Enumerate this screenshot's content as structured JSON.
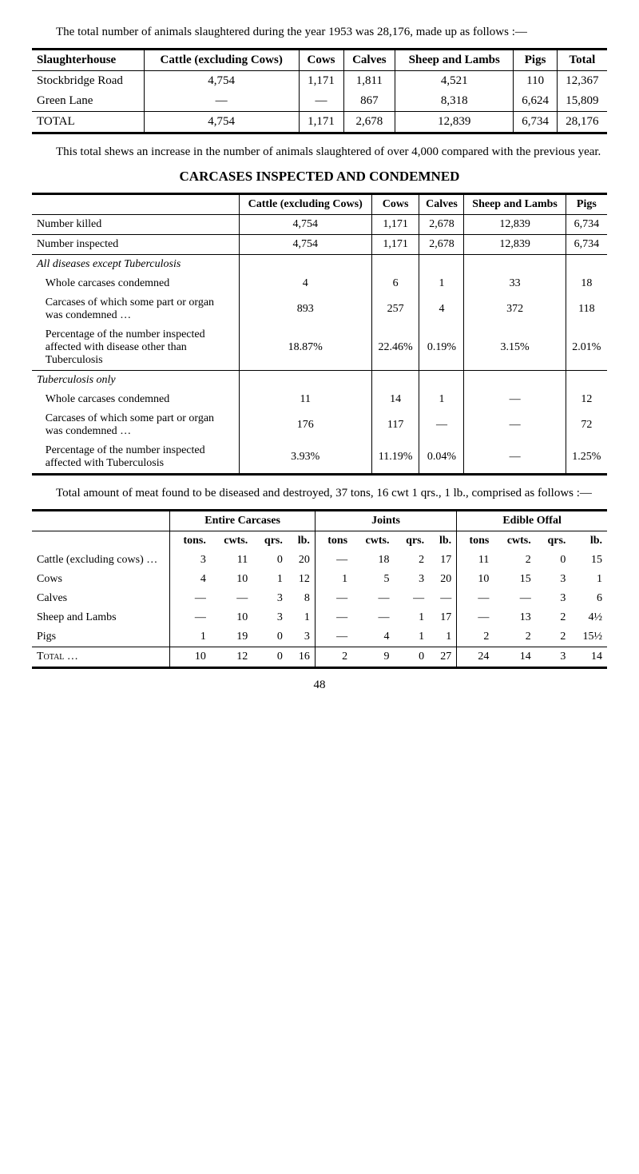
{
  "intro": {
    "line1": "The total number of animals slaughtered during the year 1953 was 28,176, made up as follows :—"
  },
  "table1": {
    "headers": [
      "Slaughterhouse",
      "Cattle (excluding Cows)",
      "Cows",
      "Calves",
      "Sheep and Lambs",
      "Pigs",
      "Total"
    ],
    "rows": [
      [
        "Stockbridge Road",
        "4,754",
        "1,171",
        "1,811",
        "4,521",
        "110",
        "12,367"
      ],
      [
        "Green Lane",
        "—",
        "—",
        "867",
        "8,318",
        "6,624",
        "15,809"
      ],
      [
        "TOTAL",
        "4,754",
        "1,171",
        "2,678",
        "12,839",
        "6,734",
        "28,176"
      ]
    ]
  },
  "para2": "This total shews an increase in the number of animals slaughtered of over 4,000 compared with the previous year.",
  "heading": "CARCASES INSPECTED AND CONDEMNED",
  "table2": {
    "headers": [
      "",
      "Cattle (excluding Cows)",
      "Cows",
      "Calves",
      "Sheep and Lambs",
      "Pigs"
    ],
    "rows": [
      {
        "label": "Number killed",
        "vals": [
          "4,754",
          "1,171",
          "2,678",
          "12,839",
          "6,734"
        ],
        "italic": false,
        "ruleBelow": true
      },
      {
        "label": "Number inspected",
        "vals": [
          "4,754",
          "1,171",
          "2,678",
          "12,839",
          "6,734"
        ],
        "italic": false,
        "ruleBelow": true
      },
      {
        "label": "All diseases except Tuberculosis",
        "vals": [
          "",
          "",
          "",
          "",
          ""
        ],
        "italic": true,
        "ruleBelow": false,
        "section": true
      },
      {
        "label": "Whole carcases condemned",
        "vals": [
          "4",
          "6",
          "1",
          "33",
          "18"
        ],
        "italic": false,
        "ruleBelow": false,
        "sub": true
      },
      {
        "label": "Carcases of which some part or organ was condemned …",
        "vals": [
          "893",
          "257",
          "4",
          "372",
          "118"
        ],
        "italic": false,
        "ruleBelow": false,
        "sub": true
      },
      {
        "label": "Percentage of the number inspected affected with disease other than Tuberculosis",
        "vals": [
          "18.87%",
          "22.46%",
          "0.19%",
          "3.15%",
          "2.01%"
        ],
        "italic": false,
        "ruleBelow": true,
        "sub": true
      },
      {
        "label": "Tuberculosis only",
        "vals": [
          "",
          "",
          "",
          "",
          ""
        ],
        "italic": true,
        "ruleBelow": false,
        "section": true
      },
      {
        "label": "Whole carcases condemned",
        "vals": [
          "11",
          "14",
          "1",
          "—",
          "12"
        ],
        "italic": false,
        "ruleBelow": false,
        "sub": true
      },
      {
        "label": "Carcases of which some part or organ was condemned …",
        "vals": [
          "176",
          "117",
          "—",
          "—",
          "72"
        ],
        "italic": false,
        "ruleBelow": false,
        "sub": true
      },
      {
        "label": "Percentage of the number inspected affected with Tuberculosis",
        "vals": [
          "3.93%",
          "11.19%",
          "0.04%",
          "—",
          "1.25%"
        ],
        "italic": false,
        "ruleBelow": false,
        "sub": true
      }
    ]
  },
  "para3": "Total amount of meat found to be diseased and destroyed, 37 tons, 16 cwt 1 qrs., 1 lb., comprised as follows :—",
  "table3": {
    "groupHeaders": [
      "",
      "Entire Carcases",
      "Joints",
      "Edible Offal"
    ],
    "subHeaders": [
      "",
      "tons.",
      "cwts.",
      "qrs.",
      "lb.",
      "tons",
      "cwts.",
      "qrs.",
      "lb.",
      "tons",
      "cwts.",
      "qrs.",
      "lb."
    ],
    "rows": [
      [
        "Cattle (excluding cows) …",
        "3",
        "11",
        "0",
        "20",
        "—",
        "18",
        "2",
        "17",
        "11",
        "2",
        "0",
        "15"
      ],
      [
        "Cows",
        "4",
        "10",
        "1",
        "12",
        "1",
        "5",
        "3",
        "20",
        "10",
        "15",
        "3",
        "1"
      ],
      [
        "Calves",
        "—",
        "—",
        "3",
        "8",
        "—",
        "—",
        "—",
        "—",
        "—",
        "—",
        "3",
        "6"
      ],
      [
        "Sheep and Lambs",
        "—",
        "10",
        "3",
        "1",
        "—",
        "—",
        "1",
        "17",
        "—",
        "13",
        "2",
        "4½"
      ],
      [
        "Pigs",
        "1",
        "19",
        "0",
        "3",
        "—",
        "4",
        "1",
        "1",
        "2",
        "2",
        "2",
        "15½"
      ],
      [
        "Total …",
        "10",
        "12",
        "0",
        "16",
        "2",
        "9",
        "0",
        "27",
        "24",
        "14",
        "3",
        "14"
      ]
    ]
  },
  "pageNum": "48"
}
